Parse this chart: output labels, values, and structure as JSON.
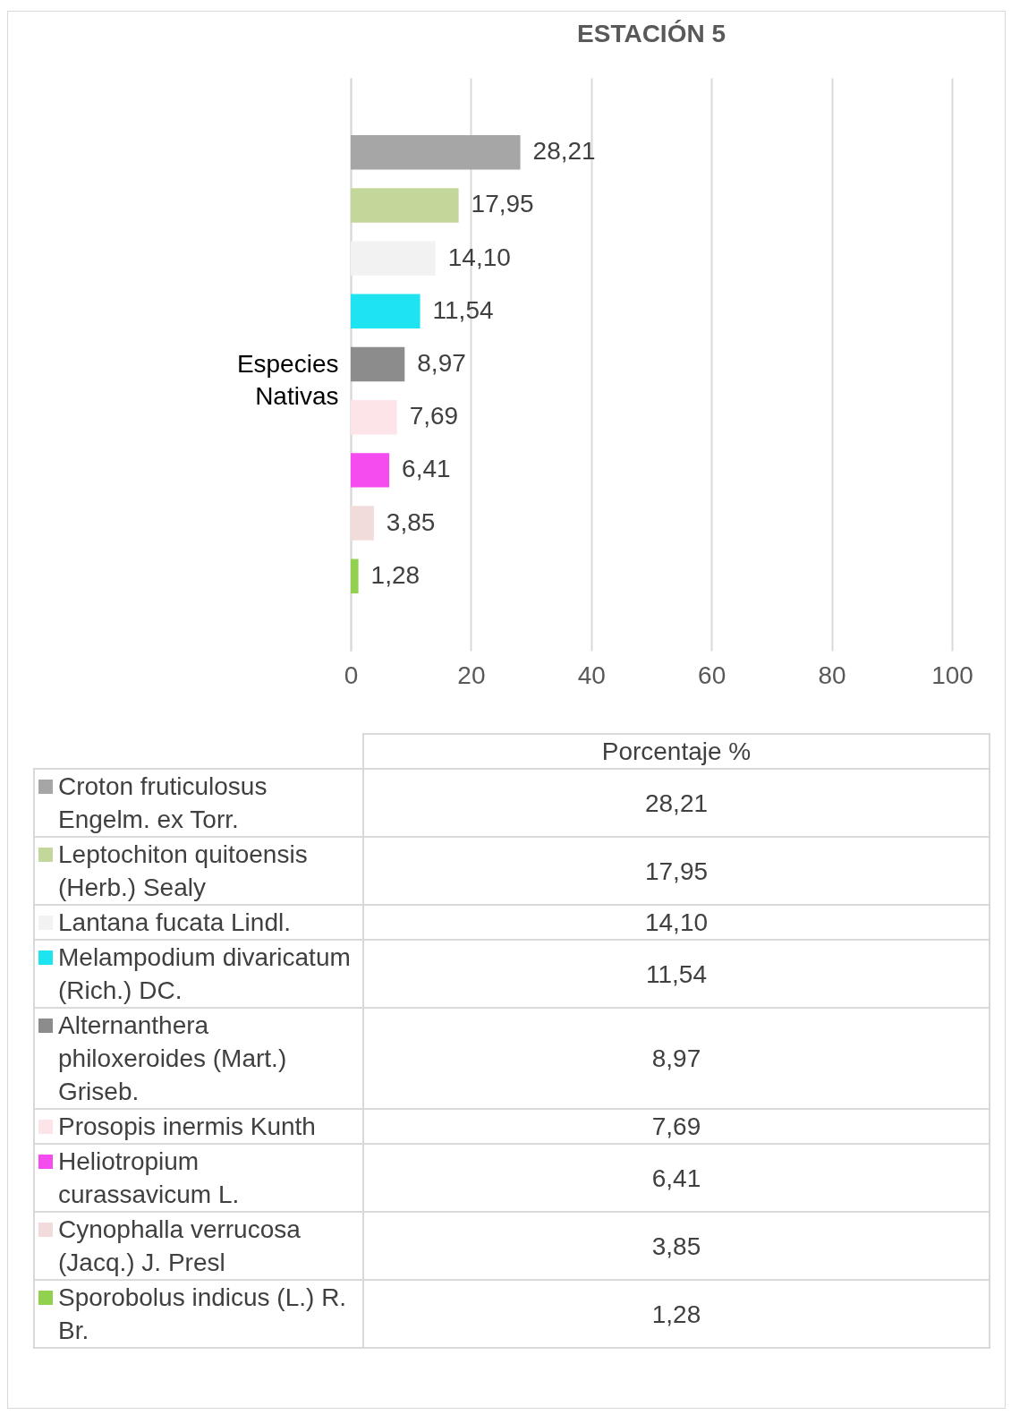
{
  "chart_data": {
    "type": "bar",
    "title": "ESTACIÓN 5",
    "orientation": "horizontal",
    "ylabel": "Especies Nativas",
    "xlabel": "Porcentaje %",
    "categories": [
      null
    ],
    "series": [
      {
        "name": "Croton fruticulosus Engelm. ex Torr.",
        "color": "#a6a6a6",
        "values": [
          28.21
        ],
        "value_labels": [
          "28,21"
        ]
      },
      {
        "name": "Leptochiton quitoensis (Herb.) Sealy",
        "color": "#c4d79b",
        "values": [
          17.95
        ],
        "value_labels": [
          "17,95"
        ]
      },
      {
        "name": "Lantana fucata Lindl.",
        "color": "#f2f2f2",
        "values": [
          14.1
        ],
        "value_labels": [
          "14,10"
        ]
      },
      {
        "name": "Melampodium divaricatum (Rich.) DC.",
        "color": "#1ee3f0",
        "values": [
          11.54
        ],
        "value_labels": [
          "11,54"
        ]
      },
      {
        "name": "Alternanthera philoxeroides (Mart.) Griseb.",
        "color": "#8c8c8c",
        "values": [
          8.97
        ],
        "value_labels": [
          "8,97"
        ]
      },
      {
        "name": "Prosopis inermis Kunth",
        "color": "#fce4e8",
        "values": [
          7.69
        ],
        "value_labels": [
          "7,69"
        ]
      },
      {
        "name": "Heliotropium curassavicum L.",
        "color": "#f54cf0",
        "values": [
          6.41
        ],
        "value_labels": [
          "6,41"
        ]
      },
      {
        "name": "Cynophalla verrucosa (Jacq.) J. Presl",
        "color": "#f2dcdb",
        "values": [
          3.85
        ],
        "value_labels": [
          "3,85"
        ]
      },
      {
        "name": "Sporobolus indicus (L.) R. Br.",
        "color": "#92d050",
        "values": [
          1.28
        ],
        "value_labels": [
          "1,28"
        ]
      }
    ],
    "xlim": [
      0,
      100
    ],
    "xticks": [
      0,
      20,
      40,
      60,
      80,
      100
    ],
    "grid": "x",
    "legend": "bottom"
  }
}
